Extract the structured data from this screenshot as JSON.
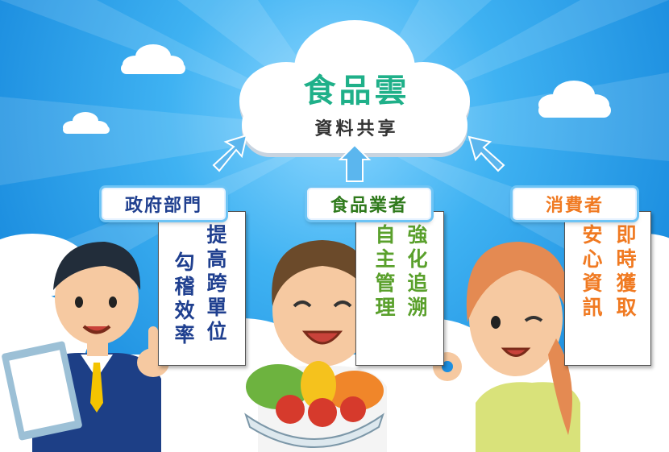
{
  "cloud": {
    "title": "食品雲",
    "subtitle": "資料共享"
  },
  "groups": {
    "government": {
      "label": "政府部門",
      "col1": "提高跨單位",
      "col2": "勾稽效率"
    },
    "business": {
      "label": "食品業者",
      "col1": "強化追溯",
      "col2": "自主管理"
    },
    "consumer": {
      "label": "消費者",
      "col1": "即時獲取",
      "col2": "安心資訊"
    }
  },
  "colors": {
    "government": "#1f3f8f",
    "business": "#5aa02c",
    "consumer": "#f07a22",
    "cloud_title": "#1fb089",
    "sky": "#3fb2f2"
  }
}
